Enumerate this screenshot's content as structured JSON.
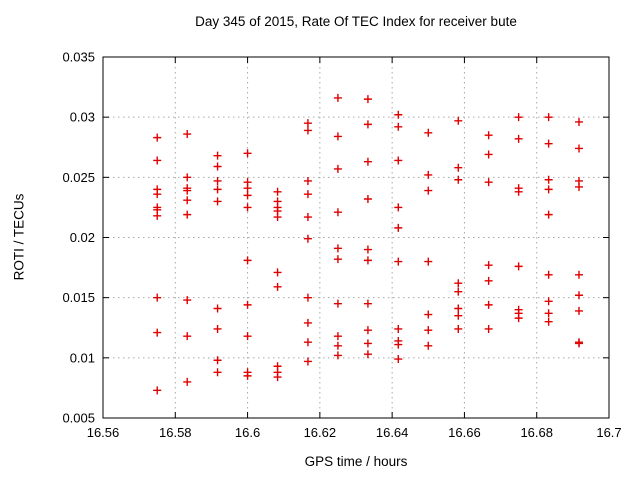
{
  "chart_data": {
    "type": "scatter",
    "title": "Day 345 of 2015, Rate Of TEC Index for receiver bute",
    "xlabel": "GPS time / hours",
    "ylabel": "ROTI / TECUs",
    "xlim": [
      16.56,
      16.7
    ],
    "ylim": [
      0.005,
      0.035
    ],
    "x_ticks": [
      16.56,
      16.58,
      16.6,
      16.62,
      16.64,
      16.66,
      16.68,
      16.7
    ],
    "x_tick_labels": [
      "16.56",
      "16.58",
      "16.6",
      "16.62",
      "16.64",
      "16.66",
      "16.68",
      "16.7"
    ],
    "y_ticks": [
      0.005,
      0.01,
      0.015,
      0.02,
      0.025,
      0.03,
      0.035
    ],
    "y_tick_labels": [
      "0.005",
      "0.01",
      "0.015",
      "0.02",
      "0.025",
      "0.03",
      "0.035"
    ],
    "grid": true,
    "legend": "none",
    "marker": {
      "shape": "plus",
      "color": "#e00000",
      "size": 8
    },
    "colors": {
      "axis": "#000000",
      "grid": "#a8a8a8",
      "background": "#ffffff"
    },
    "series": [
      {
        "name": "ROTI",
        "columns": [
          {
            "x": 16.575,
            "y": [
              0.0283,
              0.0264,
              0.024,
              0.0236,
              0.0225,
              0.0223,
              0.0218,
              0.015,
              0.0121,
              0.0073
            ]
          },
          {
            "x": 16.5833,
            "y": [
              0.0286,
              0.025,
              0.0241,
              0.0239,
              0.0231,
              0.0219,
              0.0148,
              0.0118,
              0.008
            ]
          },
          {
            "x": 16.5917,
            "y": [
              0.0268,
              0.0259,
              0.0247,
              0.024,
              0.023,
              0.0141,
              0.0124,
              0.0098,
              0.0088
            ]
          },
          {
            "x": 16.6,
            "y": [
              0.027,
              0.0246,
              0.0241,
              0.0235,
              0.0225,
              0.0181,
              0.0144,
              0.0118,
              0.0088,
              0.0085
            ]
          },
          {
            "x": 16.6083,
            "y": [
              0.0238,
              0.023,
              0.0225,
              0.0222,
              0.0217,
              0.0171,
              0.0159,
              0.0093,
              0.0088,
              0.0084
            ]
          },
          {
            "x": 16.6167,
            "y": [
              0.0295,
              0.0289,
              0.0247,
              0.0236,
              0.0217,
              0.0199,
              0.015,
              0.0129,
              0.0113,
              0.0097
            ]
          },
          {
            "x": 16.625,
            "y": [
              0.0316,
              0.0284,
              0.0257,
              0.0221,
              0.0191,
              0.0182,
              0.0145,
              0.0118,
              0.011,
              0.0102
            ]
          },
          {
            "x": 16.6333,
            "y": [
              0.0315,
              0.0294,
              0.0263,
              0.0232,
              0.019,
              0.0181,
              0.0145,
              0.0123,
              0.0112,
              0.0103
            ]
          },
          {
            "x": 16.6417,
            "y": [
              0.0302,
              0.0292,
              0.0264,
              0.0225,
              0.0208,
              0.018,
              0.0124,
              0.0114,
              0.0111,
              0.0099
            ]
          },
          {
            "x": 16.65,
            "y": [
              0.0287,
              0.0252,
              0.0239,
              0.018,
              0.0136,
              0.0123,
              0.011
            ]
          },
          {
            "x": 16.6583,
            "y": [
              0.0297,
              0.0258,
              0.0248,
              0.0162,
              0.0155,
              0.0141,
              0.0135,
              0.0124
            ]
          },
          {
            "x": 16.6667,
            "y": [
              0.0285,
              0.0269,
              0.0246,
              0.0177,
              0.0164,
              0.0144,
              0.0124
            ]
          },
          {
            "x": 16.675,
            "y": [
              0.03,
              0.0282,
              0.0241,
              0.0238,
              0.0176,
              0.014,
              0.0137,
              0.0133
            ]
          },
          {
            "x": 16.6833,
            "y": [
              0.03,
              0.0278,
              0.0248,
              0.024,
              0.0219,
              0.0169,
              0.0147,
              0.0137,
              0.013
            ]
          },
          {
            "x": 16.6917,
            "y": [
              0.0296,
              0.0274,
              0.0247,
              0.0242,
              0.0169,
              0.0152,
              0.0139,
              0.0113,
              0.0112
            ]
          }
        ]
      }
    ]
  }
}
